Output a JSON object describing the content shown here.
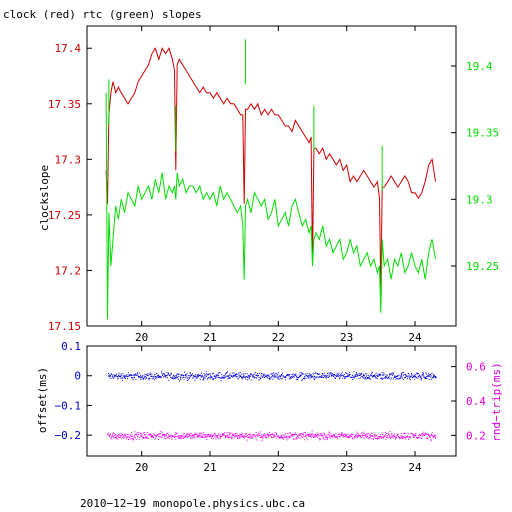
{
  "chart_data": [
    {
      "type": "line",
      "title": "clock (red) rtc (green) slopes",
      "ylabel": "clockslope",
      "xlim": [
        19.2,
        24.6
      ],
      "x_ticks": [
        20,
        21,
        22,
        23,
        24
      ],
      "x_tick_labels": [
        "20",
        "21",
        "22",
        "23",
        "24"
      ],
      "y_left": {
        "lim": [
          17.15,
          17.42
        ],
        "ticks": [
          17.15,
          17.2,
          17.25,
          17.3,
          17.35,
          17.4
        ],
        "tick_labels": [
          "17.15",
          "17.2",
          "17.25",
          "17.3",
          "17.35",
          "17.4"
        ],
        "color": "#cc0000"
      },
      "y_right": {
        "lim": [
          19.205,
          19.43
        ],
        "ticks": [
          19.25,
          19.3,
          19.35,
          19.4
        ],
        "tick_labels": [
          "19.25",
          "19.3",
          "19.35",
          "19.4"
        ],
        "color": "#00dd00"
      },
      "series": [
        {
          "color": "#cc0000",
          "axis": "left",
          "x": [
            19.48,
            19.5,
            19.52,
            19.55,
            19.58,
            19.62,
            19.66,
            19.7,
            19.75,
            19.8,
            19.85,
            19.9,
            19.95,
            20.0,
            20.05,
            20.1,
            20.15,
            20.2,
            20.25,
            20.3,
            20.35,
            20.4,
            20.45,
            20.48,
            20.5,
            20.52,
            20.55,
            20.6,
            20.65,
            20.7,
            20.75,
            20.8,
            20.85,
            20.9,
            20.95,
            21.0,
            21.05,
            21.1,
            21.15,
            21.2,
            21.25,
            21.3,
            21.35,
            21.4,
            21.45,
            21.48,
            21.5,
            21.52,
            21.55,
            21.6,
            21.65,
            21.7,
            21.75,
            21.8,
            21.85,
            21.9,
            21.95,
            22.0,
            22.05,
            22.1,
            22.15,
            22.2,
            22.25,
            22.3,
            22.35,
            22.4,
            22.45,
            22.48,
            22.5,
            22.52,
            22.55,
            22.6,
            22.65,
            22.7,
            22.75,
            22.8,
            22.85,
            22.9,
            22.95,
            23.0,
            23.05,
            23.1,
            23.15,
            23.2,
            23.25,
            23.3,
            23.35,
            23.4,
            23.45,
            23.48,
            23.5,
            23.52,
            23.55,
            23.6,
            23.65,
            23.7,
            23.75,
            23.8,
            23.85,
            23.9,
            23.95,
            24.0,
            24.05,
            24.1,
            24.15,
            24.2,
            24.25,
            24.3
          ],
          "y": [
            17.29,
            17.26,
            17.34,
            17.36,
            17.37,
            17.36,
            17.365,
            17.36,
            17.355,
            17.35,
            17.355,
            17.36,
            17.37,
            17.375,
            17.38,
            17.385,
            17.395,
            17.4,
            17.39,
            17.4,
            17.395,
            17.4,
            17.39,
            17.38,
            17.29,
            17.385,
            17.39,
            17.385,
            17.38,
            17.375,
            17.37,
            17.365,
            17.36,
            17.365,
            17.36,
            17.36,
            17.355,
            17.36,
            17.355,
            17.35,
            17.355,
            17.35,
            17.35,
            17.345,
            17.34,
            17.34,
            17.26,
            17.345,
            17.345,
            17.35,
            17.345,
            17.35,
            17.34,
            17.345,
            17.34,
            17.345,
            17.34,
            17.34,
            17.335,
            17.33,
            17.33,
            17.325,
            17.335,
            17.33,
            17.325,
            17.32,
            17.315,
            17.32,
            17.205,
            17.31,
            17.31,
            17.305,
            17.31,
            17.3,
            17.305,
            17.3,
            17.295,
            17.3,
            17.29,
            17.295,
            17.28,
            17.285,
            17.28,
            17.285,
            17.29,
            17.285,
            17.28,
            17.275,
            17.28,
            17.265,
            17.18,
            17.275,
            17.275,
            17.28,
            17.285,
            17.28,
            17.275,
            17.28,
            17.285,
            17.28,
            17.27,
            17.27,
            17.265,
            17.27,
            17.28,
            17.295,
            17.3,
            17.28
          ]
        },
        {
          "color": "#00dd00",
          "axis": "right",
          "x": [
            19.48,
            19.5,
            19.52,
            19.55,
            19.58,
            19.62,
            19.66,
            19.7,
            19.75,
            19.8,
            19.85,
            19.9,
            19.95,
            20.0,
            20.05,
            20.1,
            20.15,
            20.2,
            20.25,
            20.3,
            20.35,
            20.4,
            20.45,
            20.48,
            20.5,
            20.52,
            20.55,
            20.6,
            20.65,
            20.7,
            20.75,
            20.8,
            20.85,
            20.9,
            20.95,
            21.0,
            21.05,
            21.1,
            21.15,
            21.2,
            21.25,
            21.3,
            21.35,
            21.4,
            21.45,
            21.48,
            21.5,
            21.52,
            21.55,
            21.6,
            21.65,
            21.7,
            21.75,
            21.8,
            21.85,
            21.9,
            21.95,
            22.0,
            22.05,
            22.1,
            22.15,
            22.2,
            22.25,
            22.3,
            22.35,
            22.4,
            22.45,
            22.48,
            22.5,
            22.52,
            22.55,
            22.6,
            22.65,
            22.7,
            22.75,
            22.8,
            22.85,
            22.9,
            22.95,
            23.0,
            23.05,
            23.1,
            23.15,
            23.2,
            23.25,
            23.3,
            23.35,
            23.4,
            23.45,
            23.48,
            23.5,
            23.52,
            23.55,
            23.6,
            23.65,
            23.7,
            23.75,
            23.8,
            23.85,
            23.9,
            23.95,
            24.0,
            24.05,
            24.1,
            24.15,
            24.2,
            24.25,
            24.3
          ],
          "y": [
            19.38,
            19.21,
            19.29,
            19.25,
            19.27,
            19.295,
            19.285,
            19.3,
            19.29,
            19.305,
            19.3,
            19.295,
            19.31,
            19.3,
            19.305,
            19.31,
            19.3,
            19.315,
            19.305,
            19.32,
            19.3,
            19.31,
            19.305,
            19.31,
            19.3,
            19.32,
            19.31,
            19.315,
            19.305,
            19.31,
            19.31,
            19.305,
            19.31,
            19.3,
            19.305,
            19.3,
            19.305,
            19.295,
            19.31,
            19.3,
            19.305,
            19.3,
            19.295,
            19.29,
            19.295,
            19.28,
            19.24,
            19.295,
            19.3,
            19.29,
            19.305,
            19.3,
            19.295,
            19.3,
            19.285,
            19.29,
            19.3,
            19.28,
            19.285,
            19.29,
            19.28,
            19.295,
            19.3,
            19.29,
            19.28,
            19.285,
            19.275,
            19.28,
            19.25,
            19.27,
            19.275,
            19.27,
            19.28,
            19.265,
            19.27,
            19.26,
            19.265,
            19.27,
            19.255,
            19.26,
            19.27,
            19.26,
            19.265,
            19.25,
            19.255,
            19.26,
            19.25,
            19.255,
            19.245,
            19.25,
            19.215,
            19.27,
            19.25,
            19.255,
            19.24,
            19.255,
            19.25,
            19.26,
            19.245,
            19.25,
            19.26,
            19.25,
            19.245,
            19.255,
            19.24,
            19.26,
            19.27,
            19.255
          ]
        }
      ],
      "spikes": [
        {
          "x": 19.52,
          "series_color": "#00dd00",
          "axis": "right",
          "y": 19.39
        },
        {
          "x": 20.5,
          "series_color": "#00dd00",
          "axis": "right",
          "y": 19.37
        },
        {
          "x": 21.52,
          "series_color": "#00dd00",
          "axis": "right",
          "y": 19.42
        },
        {
          "x": 22.52,
          "series_color": "#00dd00",
          "axis": "right",
          "y": 19.37
        },
        {
          "x": 23.52,
          "series_color": "#00dd00",
          "axis": "right",
          "y": 19.34
        }
      ]
    },
    {
      "type": "scatter",
      "ylabel": "offset(ms)",
      "y2label": "rnd−trip(ms)",
      "footer": "2010−12−19 monopole.physics.ubc.ca",
      "xlim": [
        19.2,
        24.6
      ],
      "x_ticks": [
        20,
        21,
        22,
        23,
        24
      ],
      "x_tick_labels": [
        "20",
        "21",
        "22",
        "23",
        "24"
      ],
      "y_left": {
        "lim": [
          -0.27,
          0.1
        ],
        "ticks": [
          -0.2,
          -0.1,
          0,
          0.1
        ],
        "tick_labels": [
          "−0.2",
          "−0.1",
          "0",
          "0.1"
        ],
        "color": "#0000cc"
      },
      "y_right": {
        "lim": [
          0.08,
          0.72
        ],
        "ticks": [
          0.2,
          0.4,
          0.6
        ],
        "tick_labels": [
          "0.2",
          "0.4",
          "0.6"
        ],
        "color": "#dd00dd"
      },
      "series": [
        {
          "color": "#0000dd",
          "axis": "left",
          "x_start": 19.5,
          "x_end": 24.3,
          "center": 0.0,
          "spread": 0.006
        },
        {
          "color": "#ee00ee",
          "axis": "right",
          "x_start": 19.5,
          "x_end": 24.3,
          "center": 0.2,
          "spread": 0.01
        }
      ]
    }
  ]
}
